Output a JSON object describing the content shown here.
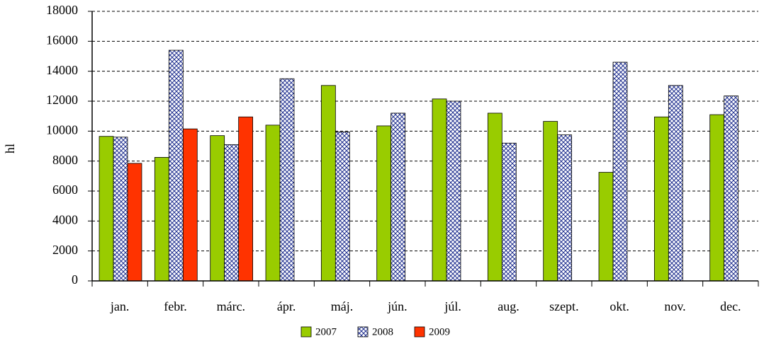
{
  "chart_data": {
    "type": "bar",
    "y_label": "hl",
    "categories": [
      "jan.",
      "febr.",
      "márc.",
      "ápr.",
      "máj.",
      "jún.",
      "júl.",
      "aug.",
      "szept.",
      "okt.",
      "nov.",
      "dec."
    ],
    "series": [
      {
        "name": "2007",
        "color": "#99cc00",
        "values": [
          9650,
          8250,
          9700,
          10400,
          13050,
          10350,
          12150,
          11200,
          10650,
          7250,
          10950,
          11100
        ]
      },
      {
        "name": "2008",
        "color": "#1f2f8f",
        "pattern": "crosshatch",
        "values": [
          9600,
          15400,
          9100,
          13500,
          9950,
          11200,
          12000,
          9200,
          9750,
          14600,
          13050,
          12350
        ]
      },
      {
        "name": "2009",
        "color": "#ff3300",
        "values": [
          7850,
          10150,
          10950,
          null,
          null,
          null,
          null,
          null,
          null,
          null,
          null,
          null
        ]
      }
    ],
    "ylim": [
      0,
      18000
    ],
    "yticks": [
      0,
      2000,
      4000,
      6000,
      8000,
      10000,
      12000,
      14000,
      16000,
      18000
    ],
    "grid": true,
    "legend": "bottom"
  }
}
